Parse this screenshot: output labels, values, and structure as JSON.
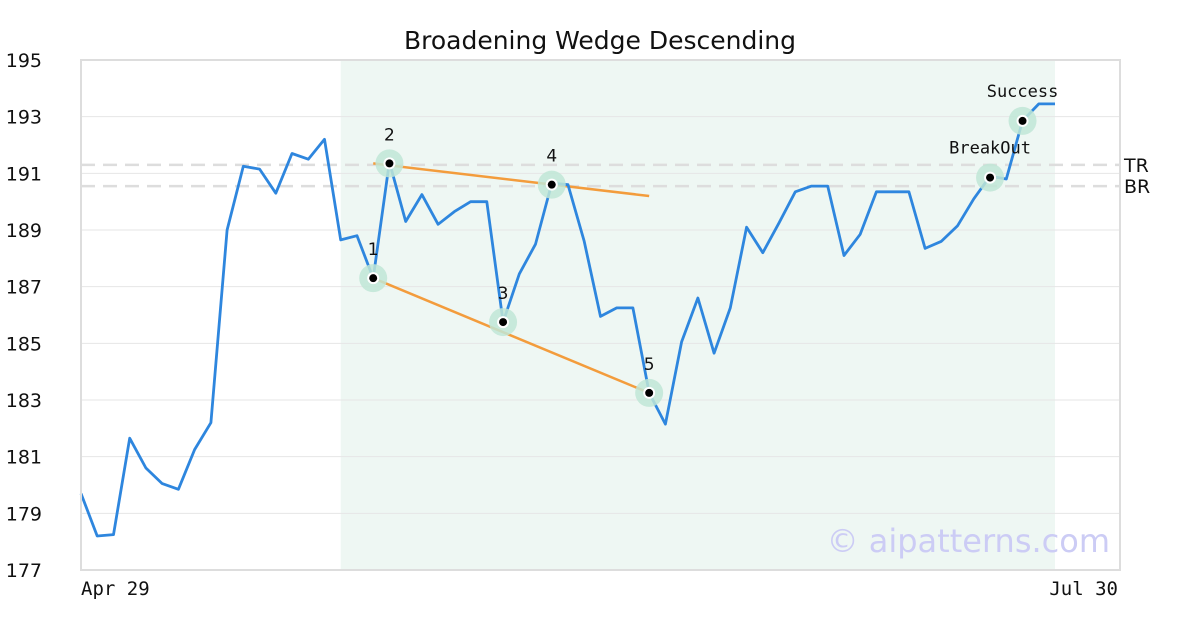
{
  "chart_data": {
    "type": "line",
    "title": "Broadening Wedge Descending",
    "xlabel": "",
    "ylabel": "",
    "ylim": [
      177,
      195
    ],
    "yticks": [
      177,
      179,
      181,
      183,
      185,
      187,
      189,
      191,
      193,
      195
    ],
    "x_start_label": "Apr 29",
    "x_end_label": "Jul 30",
    "grid": true,
    "series": [
      {
        "color": "#2e86de",
        "values": [
          179.7,
          178.2,
          178.25,
          181.65,
          180.6,
          180.05,
          179.85,
          181.25,
          182.2,
          189.0,
          191.25,
          191.15,
          190.3,
          191.7,
          191.5,
          192.2,
          188.65,
          188.8,
          187.3,
          191.4,
          189.3,
          190.25,
          189.2,
          189.65,
          190.0,
          190.0,
          185.75,
          187.45,
          188.5,
          190.65,
          190.6,
          188.6,
          185.95,
          186.25,
          186.25,
          183.25,
          182.15,
          185.05,
          186.6,
          184.65,
          186.25,
          189.1,
          188.2,
          189.25,
          190.35,
          190.55,
          190.55,
          188.1,
          188.85,
          190.35,
          190.35,
          190.35,
          188.35,
          188.6,
          189.15,
          190.1,
          190.9,
          190.8,
          192.85,
          193.45,
          193.45
        ]
      }
    ],
    "pattern_region": {
      "start_index": 16,
      "end_index": 60,
      "color": "#eef7f3"
    },
    "resistance_level": {
      "label": "TR",
      "value": 191.3
    },
    "breakout_level": {
      "label": "BR",
      "value": 190.55
    },
    "trendlines": [
      {
        "from": {
          "index": 18,
          "value": 187.3
        },
        "to": {
          "index": 35,
          "value": 183.25
        },
        "color": "#f39c3c"
      },
      {
        "from": {
          "index": 18,
          "value": 191.35
        },
        "to": {
          "index": 35,
          "value": 190.2
        },
        "color": "#f39c3c"
      }
    ],
    "pivots": [
      {
        "label": "1",
        "index": 18,
        "value": 187.3
      },
      {
        "label": "2",
        "index": 19,
        "value": 191.35
      },
      {
        "label": "3",
        "index": 26,
        "value": 185.75
      },
      {
        "label": "4",
        "index": 29,
        "value": 190.6
      },
      {
        "label": "5",
        "index": 35,
        "value": 183.25
      }
    ],
    "events": [
      {
        "label": "BreakOut",
        "index": 56,
        "value": 190.85
      },
      {
        "label": "Success",
        "index": 58,
        "value": 192.85
      }
    ],
    "watermark": "© aipatterns.com",
    "colors": {
      "line": "#2e86de",
      "trendline": "#f39c3c",
      "marker_halo": "#bfe6d6",
      "marker_dot": "#000000",
      "grid": "#e6e6e6",
      "frame": "#dddddd",
      "level_dash": "#dddddd",
      "watermark": "#ccccf5"
    }
  }
}
